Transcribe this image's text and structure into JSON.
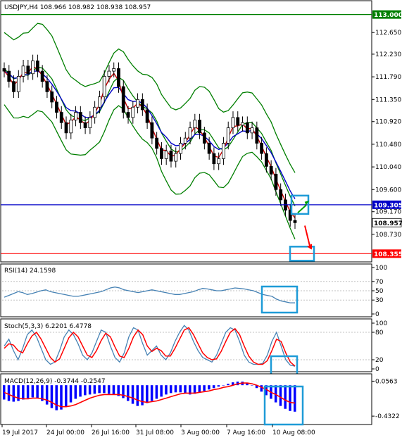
{
  "chart_data": [
    {
      "type": "candlestick",
      "title": "USDJPY,H4  108.966 108.982 108.938 108.957",
      "y_ticks": [
        "113.000",
        "112.650",
        "112.230",
        "111.790",
        "111.350",
        "110.920",
        "110.480",
        "110.040",
        "109.600",
        "109.170",
        "108.730"
      ],
      "ylim": [
        108.25,
        113.2
      ],
      "horizontal_levels": [
        {
          "value": 113.0,
          "label": "113.000",
          "color": "#007f00"
        },
        {
          "value": 109.305,
          "label": "109.305",
          "color": "#0000c8"
        },
        {
          "value": 108.355,
          "label": "108.355",
          "color": "#ff0000"
        }
      ],
      "current_price": {
        "value": 108.957,
        "label": "108.957"
      },
      "close_path": [
        111.9,
        111.7,
        111.5,
        111.8,
        112.0,
        111.85,
        112.1,
        111.9,
        111.7,
        111.5,
        111.3,
        111.1,
        110.9,
        110.7,
        110.95,
        111.1,
        110.9,
        110.8,
        111.0,
        111.2,
        111.4,
        111.8,
        111.9,
        111.95,
        111.6,
        111.1,
        111.0,
        111.2,
        111.35,
        111.15,
        110.9,
        110.6,
        110.4,
        110.2,
        110.35,
        110.15,
        110.3,
        110.5,
        110.6,
        110.8,
        110.95,
        110.7,
        110.5,
        110.3,
        110.1,
        110.2,
        110.5,
        110.8,
        111.0,
        110.85,
        110.9,
        110.7,
        110.8,
        110.5,
        110.3,
        110.05,
        109.9,
        109.6,
        109.4,
        109.2,
        109.0,
        108.957
      ],
      "bollinger": {
        "upper_color": "#007f00",
        "middle_color": "#007f00",
        "lower_color": "#007f00"
      },
      "moving_averages": [
        {
          "color": "#0000c8"
        },
        {
          "color": "#c80000"
        }
      ],
      "annotations": [
        {
          "type": "box",
          "color": "#1e9bd7"
        },
        {
          "type": "box",
          "color": "#1e9bd7"
        },
        {
          "type": "arrow",
          "direction": "up",
          "color": "#00a000"
        },
        {
          "type": "arrow",
          "direction": "down",
          "color": "#ff0000"
        }
      ]
    },
    {
      "type": "line",
      "title": "RSI(14) 24.1598",
      "y_ticks": [
        "100",
        "70",
        "50",
        "30",
        "0"
      ],
      "ylim": [
        0,
        100
      ],
      "levels": [
        70,
        50,
        30
      ],
      "series": [
        {
          "color": "#4682b4",
          "values": [
            36,
            40,
            44,
            48,
            46,
            42,
            44,
            47,
            50,
            52,
            48,
            46,
            44,
            42,
            40,
            38,
            38,
            40,
            42,
            44,
            46,
            48,
            52,
            56,
            58,
            56,
            52,
            50,
            48,
            46,
            48,
            50,
            52,
            50,
            48,
            46,
            44,
            42,
            42,
            44,
            46,
            48,
            52,
            55,
            54,
            52,
            50,
            50,
            52,
            54,
            56,
            55,
            54,
            52,
            50,
            46,
            42,
            40,
            38,
            32,
            28,
            26,
            24,
            24
          ]
        }
      ],
      "annotations": [
        {
          "type": "box",
          "color": "#1e9bd7"
        }
      ]
    },
    {
      "type": "line",
      "title": "Stoch(5,3,3) 6.2201 6.4778",
      "y_ticks": [
        "100",
        "80",
        "20",
        "0"
      ],
      "ylim": [
        0,
        100
      ],
      "levels": [
        80,
        20
      ],
      "series": [
        {
          "color": "#4682b4",
          "values": [
            50,
            65,
            40,
            20,
            45,
            75,
            85,
            70,
            45,
            20,
            10,
            15,
            40,
            70,
            85,
            75,
            55,
            30,
            20,
            35,
            60,
            85,
            80,
            50,
            25,
            15,
            35,
            70,
            90,
            85,
            55,
            30,
            40,
            50,
            30,
            20,
            35,
            60,
            80,
            95,
            85,
            60,
            40,
            25,
            20,
            15,
            30,
            55,
            80,
            90,
            85,
            60,
            30,
            15,
            10,
            10,
            12,
            30,
            60,
            80,
            50,
            20,
            8,
            6
          ]
        },
        {
          "color": "#ff0000",
          "values": [
            45,
            55,
            52,
            40,
            35,
            55,
            72,
            80,
            65,
            45,
            25,
            15,
            22,
            45,
            68,
            80,
            70,
            50,
            30,
            25,
            40,
            62,
            78,
            70,
            48,
            28,
            25,
            45,
            70,
            85,
            75,
            50,
            38,
            45,
            40,
            28,
            28,
            45,
            65,
            85,
            90,
            75,
            55,
            35,
            25,
            20,
            22,
            38,
            60,
            80,
            88,
            75,
            50,
            28,
            15,
            10,
            10,
            18,
            40,
            65,
            60,
            35,
            15,
            6
          ]
        }
      ],
      "annotations": [
        {
          "type": "box",
          "color": "#1e9bd7"
        }
      ]
    },
    {
      "type": "histogram",
      "title": "MACD(12,26,9) -0.3744 -0.2547",
      "y_ticks": [
        "0.0563",
        "-0.4322"
      ],
      "ylim": [
        -0.5,
        0.1
      ],
      "histogram": [
        -0.2,
        -0.22,
        -0.23,
        -0.22,
        -0.2,
        -0.18,
        -0.17,
        -0.18,
        -0.22,
        -0.27,
        -0.32,
        -0.35,
        -0.34,
        -0.3,
        -0.24,
        -0.19,
        -0.16,
        -0.14,
        -0.13,
        -0.12,
        -0.11,
        -0.11,
        -0.12,
        -0.13,
        -0.15,
        -0.18,
        -0.22,
        -0.26,
        -0.29,
        -0.28,
        -0.25,
        -0.22,
        -0.19,
        -0.16,
        -0.13,
        -0.11,
        -0.1,
        -0.1,
        -0.11,
        -0.13,
        -0.12,
        -0.1,
        -0.08,
        -0.06,
        -0.04,
        -0.02,
        0.0,
        0.02,
        0.04,
        0.05,
        0.05,
        0.03,
        0.0,
        -0.04,
        -0.09,
        -0.14,
        -0.19,
        -0.24,
        -0.29,
        -0.33,
        -0.36,
        -0.37
      ],
      "signal": [
        -0.1,
        -0.13,
        -0.16,
        -0.18,
        -0.19,
        -0.19,
        -0.18,
        -0.18,
        -0.19,
        -0.21,
        -0.24,
        -0.28,
        -0.3,
        -0.3,
        -0.29,
        -0.27,
        -0.24,
        -0.21,
        -0.18,
        -0.16,
        -0.14,
        -0.13,
        -0.13,
        -0.13,
        -0.13,
        -0.14,
        -0.16,
        -0.18,
        -0.21,
        -0.23,
        -0.24,
        -0.23,
        -0.22,
        -0.2,
        -0.18,
        -0.16,
        -0.14,
        -0.12,
        -0.11,
        -0.11,
        -0.11,
        -0.1,
        -0.09,
        -0.08,
        -0.06,
        -0.05,
        -0.03,
        -0.02,
        0.0,
        0.02,
        0.03,
        0.03,
        0.02,
        0.0,
        -0.03,
        -0.06,
        -0.1,
        -0.13,
        -0.17,
        -0.21,
        -0.24,
        -0.25
      ],
      "colors": {
        "histogram": "#0000ff",
        "signal": "#ff0000"
      },
      "annotations": [
        {
          "type": "box",
          "color": "#1e9bd7"
        }
      ]
    }
  ],
  "x_axis_labels": [
    "19 Jul 2017",
    "24 Jul 00:00",
    "26 Jul 16:00",
    "31 Jul 08:00",
    "3 Aug 00:00",
    "7 Aug 16:00",
    "10 Aug 08:00"
  ]
}
